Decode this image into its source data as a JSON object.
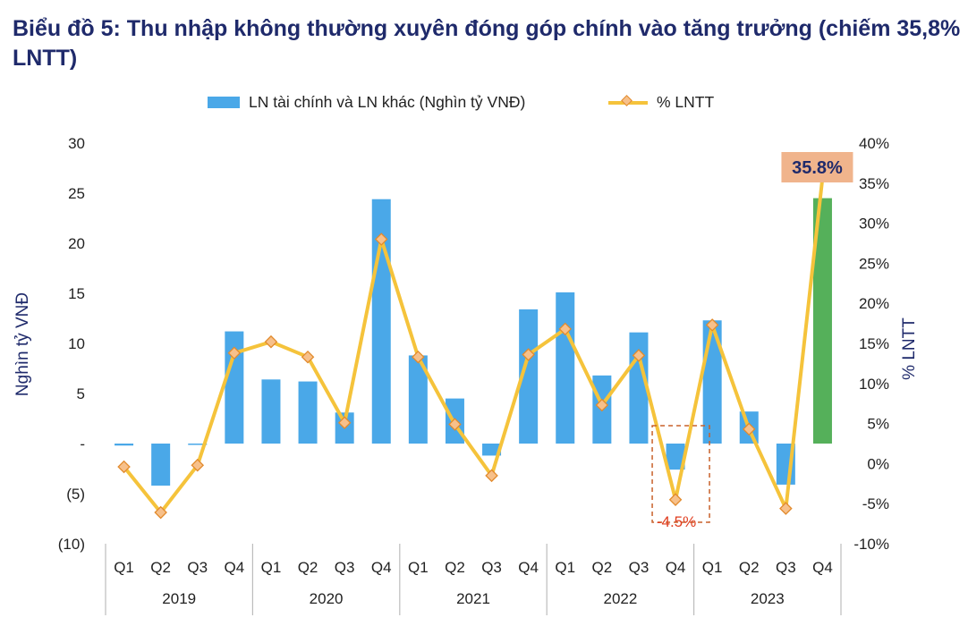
{
  "title": "Biểu đồ 5: Thu nhập không thường xuyên đóng góp chính vào tăng trưởng (chiếm 35,8% LNTT)",
  "legend": {
    "bar": "LN tài chính và LN khác (Nghìn tỷ VNĐ)",
    "line": "% LNTT"
  },
  "colors": {
    "bar": "#4aa8e8",
    "bar_highlight": "#55b05a",
    "line": "#f5c33b",
    "marker_fill": "#f7c08a",
    "marker_stroke": "#e28a2c",
    "title": "#1f2a6b",
    "callout_bg": "#f0b48c",
    "callout_text": "#1f2a6b",
    "annotation_red": "#e03c1e",
    "dashed_box": "#c8602a"
  },
  "chart_data": {
    "type": "bar+line",
    "title": "Biểu đồ 5: Thu nhập không thường xuyên đóng góp chính vào tăng trưởng (chiếm 35,8% LNTT)",
    "categories": [
      "Q1",
      "Q2",
      "Q3",
      "Q4",
      "Q1",
      "Q2",
      "Q3",
      "Q4",
      "Q1",
      "Q2",
      "Q3",
      "Q4",
      "Q1",
      "Q2",
      "Q3",
      "Q4",
      "Q1",
      "Q2",
      "Q3",
      "Q4"
    ],
    "years": [
      "2019",
      "2020",
      "2021",
      "2022",
      "2023"
    ],
    "series": [
      {
        "name": "LN tài chính và LN khác (Nghìn tỷ VNĐ)",
        "type": "bar",
        "axis": "left",
        "values": [
          -0.2,
          -4.2,
          -0.1,
          11.2,
          6.4,
          6.2,
          3.1,
          24.4,
          8.8,
          4.5,
          -1.2,
          13.4,
          15.1,
          6.8,
          11.1,
          -2.6,
          12.3,
          3.2,
          -4.1,
          24.5
        ]
      },
      {
        "name": "% LNTT",
        "type": "line",
        "axis": "right",
        "values": [
          -0.4,
          -6.1,
          -0.2,
          13.8,
          15.2,
          13.3,
          5.1,
          28.0,
          13.3,
          4.9,
          -1.5,
          13.6,
          16.8,
          7.3,
          13.5,
          -4.5,
          17.3,
          4.3,
          -5.6,
          35.8
        ]
      }
    ],
    "ylim_left": [
      -10,
      30
    ],
    "yticks_left": [
      "30",
      "25",
      "20",
      "15",
      "10",
      "5",
      "-",
      "(5)",
      "(10)"
    ],
    "ylabel_left": "Nghìn tỷ VNĐ",
    "ylim_right": [
      -10,
      40
    ],
    "yticks_right": [
      "40%",
      "35%",
      "30%",
      "25%",
      "20%",
      "15%",
      "10%",
      "5%",
      "0%",
      "-5%",
      "-10%"
    ],
    "ylabel_right": "% LNTT",
    "annotations": {
      "last_value": "35.8%",
      "q4_2022": "-4.5%"
    },
    "grid": false,
    "legend_position": "top-center"
  }
}
